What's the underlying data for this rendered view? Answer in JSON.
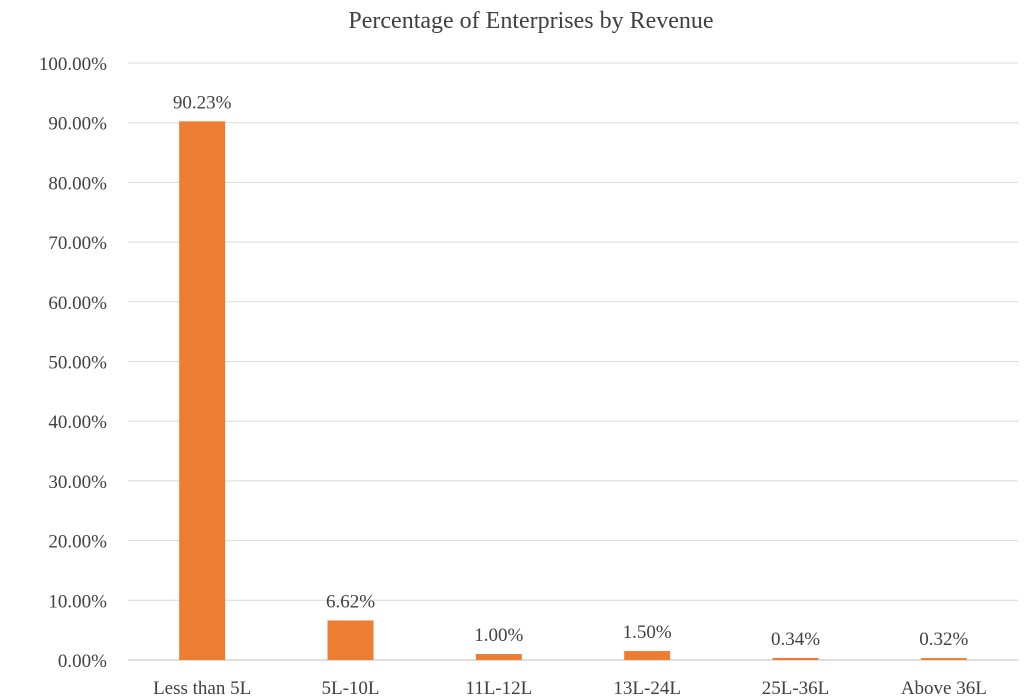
{
  "chart_data": {
    "type": "bar",
    "title": "Percentage of Enterprises by Revenue",
    "categories": [
      "Less than 5L",
      "5L-10L",
      "11L-12L",
      "13L-24L",
      "25L-36L",
      "Above 36L"
    ],
    "values": [
      90.23,
      6.62,
      1.0,
      1.5,
      0.34,
      0.32
    ],
    "data_labels": [
      "90.23%",
      "6.62%",
      "1.00%",
      "1.50%",
      "0.34%",
      "0.32%"
    ],
    "ylim": [
      0,
      100
    ],
    "y_ticks": [
      0,
      10,
      20,
      30,
      40,
      50,
      60,
      70,
      80,
      90,
      100
    ],
    "y_tick_labels": [
      "0.00%",
      "10.00%",
      "20.00%",
      "30.00%",
      "40.00%",
      "50.00%",
      "60.00%",
      "70.00%",
      "80.00%",
      "90.00%",
      "100.00%"
    ],
    "grid": true,
    "legend": "none",
    "bar_color": "#ed7d31",
    "grid_color": "#d9d9d9",
    "text_color": "#404040"
  }
}
